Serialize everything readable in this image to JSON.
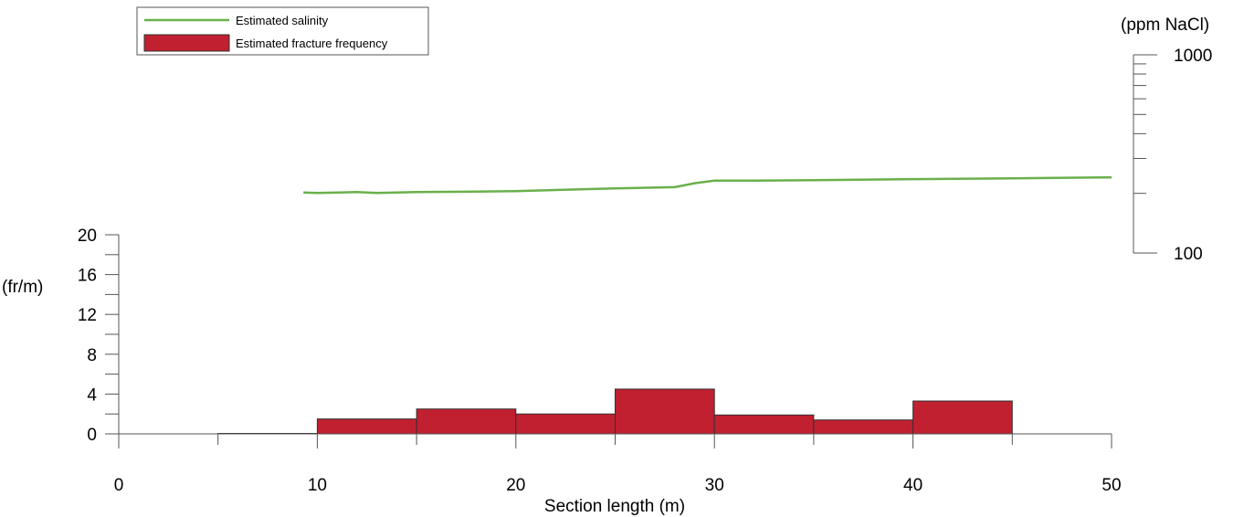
{
  "chart_data": {
    "type": "bar+line",
    "x_axis": {
      "label": "Section length (m)",
      "range": [
        0,
        50
      ],
      "ticks": [
        0,
        10,
        20,
        30,
        40,
        50
      ],
      "tick_labels": [
        "0",
        "10",
        "20",
        "30",
        "40",
        "50"
      ]
    },
    "y_axis_left": {
      "unit_label": "(fr/m)",
      "range": [
        0,
        20
      ],
      "ticks": [
        0,
        4,
        8,
        12,
        16,
        20
      ],
      "tick_labels": [
        "0",
        "4",
        "8",
        "12",
        "16",
        "20"
      ]
    },
    "y_axis_right": {
      "unit_label": "(ppm NaCl)",
      "scale": "log",
      "range": [
        100,
        1000
      ],
      "ticks": [
        100,
        1000
      ],
      "tick_labels": [
        "100",
        "1000"
      ]
    },
    "legend": {
      "placement": "top-left",
      "entries": [
        {
          "label": "Estimated salinity",
          "kind": "line",
          "color": "#6ab04c"
        },
        {
          "label": "Estimated fracture frequency",
          "kind": "bar",
          "color": "#c0202f"
        }
      ]
    },
    "series": [
      {
        "name": "Estimated fracture frequency",
        "kind": "bar",
        "color": "#c0202f",
        "bins": [
          {
            "x0": 5,
            "x1": 10,
            "value": 0.0
          },
          {
            "x0": 10,
            "x1": 15,
            "value": 1.5
          },
          {
            "x0": 15,
            "x1": 20,
            "value": 2.5
          },
          {
            "x0": 20,
            "x1": 25,
            "value": 2.0
          },
          {
            "x0": 25,
            "x1": 30,
            "value": 4.5
          },
          {
            "x0": 30,
            "x1": 35,
            "value": 1.9
          },
          {
            "x0": 35,
            "x1": 40,
            "value": 1.4
          },
          {
            "x0": 40,
            "x1": 45,
            "value": 3.3
          }
        ]
      },
      {
        "name": "Estimated salinity",
        "kind": "line",
        "color": "#6ab04c",
        "points": [
          [
            9.3,
            202
          ],
          [
            10,
            201
          ],
          [
            12,
            203
          ],
          [
            13,
            201
          ],
          [
            15,
            203
          ],
          [
            18,
            204
          ],
          [
            20,
            205
          ],
          [
            22,
            208
          ],
          [
            25,
            212
          ],
          [
            28,
            215
          ],
          [
            29,
            225
          ],
          [
            30,
            232
          ],
          [
            32,
            232
          ],
          [
            35,
            233
          ],
          [
            40,
            236
          ],
          [
            45,
            238
          ],
          [
            50,
            241
          ]
        ]
      }
    ]
  }
}
